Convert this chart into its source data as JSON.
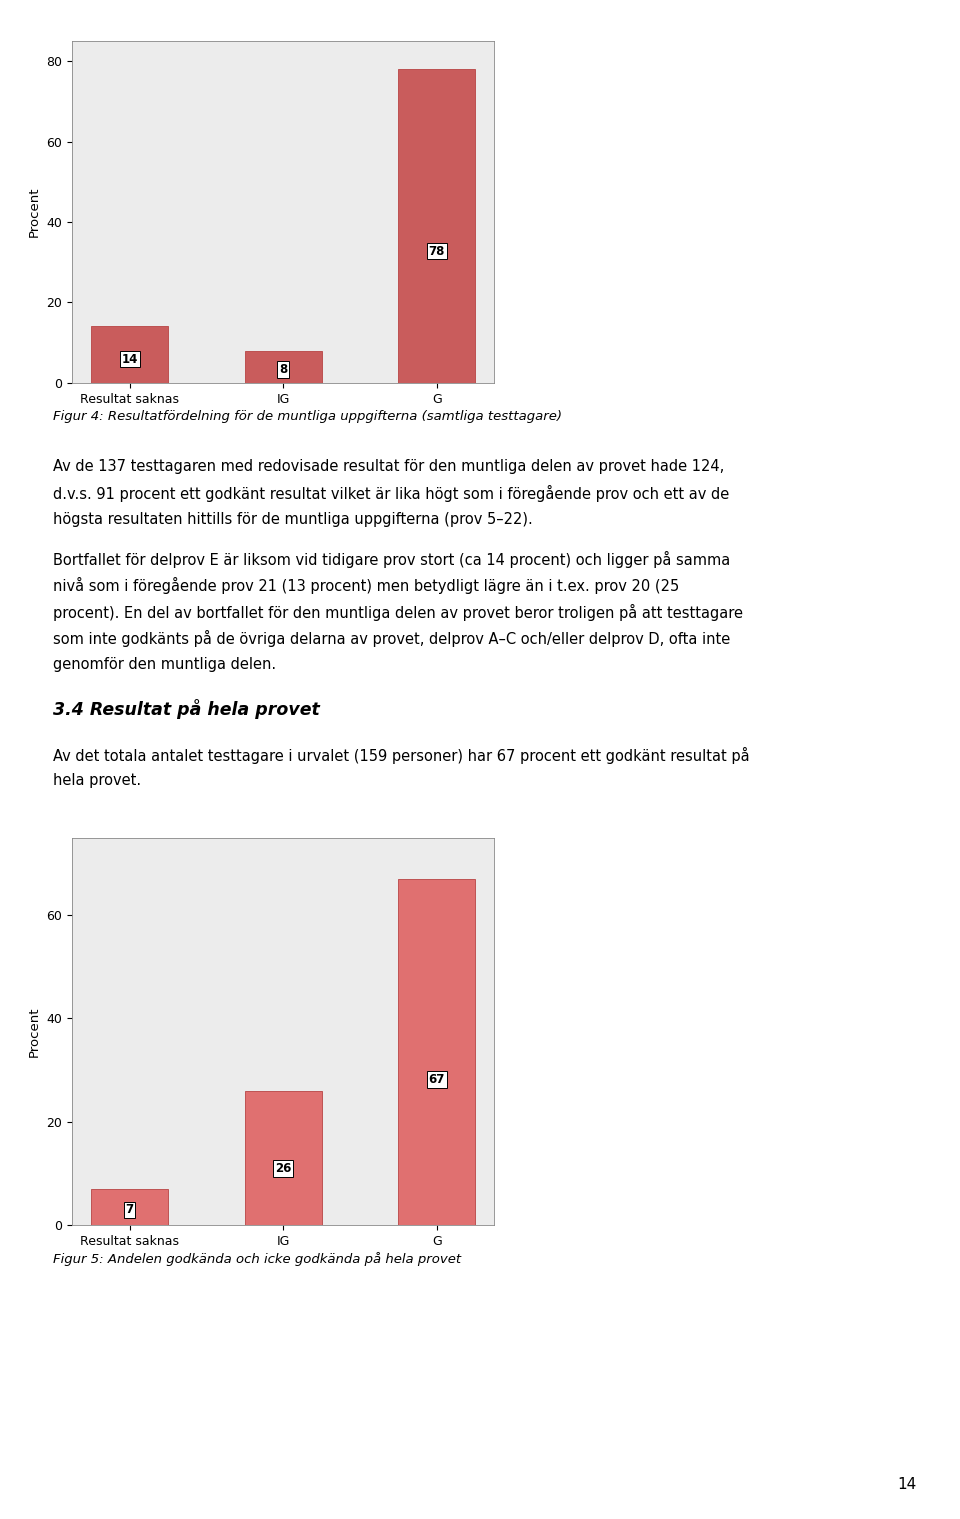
{
  "chart1": {
    "categories": [
      "Resultat saknas",
      "IG",
      "G"
    ],
    "values": [
      14,
      8,
      78
    ],
    "bar_color": "#c95c5c",
    "ylabel": "Procent",
    "ylim": [
      0,
      85
    ],
    "yticks": [
      0,
      20,
      40,
      60,
      80
    ],
    "figcaption": "Figur 4: Resultatfördelning för de muntliga uppgifterna (samtliga testtagare)"
  },
  "chart2": {
    "categories": [
      "Resultat saknas",
      "IG",
      "G"
    ],
    "values": [
      7,
      26,
      67
    ],
    "bar_color": "#e07070",
    "ylabel": "Procent",
    "ylim": [
      0,
      75
    ],
    "yticks": [
      0,
      20,
      40,
      60
    ],
    "figcaption": "Figur 5: Andelen godkända och icke godkända på hela provet"
  },
  "para1_lines": [
    "Av de 137 testtagaren med redovisade resultat för den muntliga delen av provet hade 124,",
    "d.v.s. 91 procent ett godkänt resultat vilket är lika högt som i föregående prov och ett av de",
    "högsta resultaten hittills för de muntliga uppgifterna (prov 5–22)."
  ],
  "para2_lines": [
    "Bortfallet för delprov E är liksom vid tidigare prov stort (ca 14 procent) och ligger på samma",
    "nivå som i föregående prov 21 (13 procent) men betydligt lägre än i t.ex. prov 20 (25",
    "procent). En del av bortfallet för den muntliga delen av provet beror troligen på att testtagare",
    "som inte godkänts på de övriga delarna av provet, delprov A–C och/eller delprov D, ofta inte",
    "genomför den muntliga delen."
  ],
  "section_heading": "3.4 Resultat på hela provet",
  "section_para_lines": [
    "Av det totala antalet testtagare i urvalet (159 personer) har 67 procent ett godkänt resultat på",
    "hela provet."
  ],
  "page_number": "14",
  "bg_color": "#ffffff",
  "plot_bg_color": "#ececec",
  "bar_edge_color": "#b84444",
  "label_box_color": "#ffffff",
  "label_fontsize": 8.5,
  "axis_label_fontsize": 9.5,
  "tick_fontsize": 9,
  "caption_fontsize": 9.5,
  "body_fontsize": 10.5,
  "heading_fontsize": 12.5
}
